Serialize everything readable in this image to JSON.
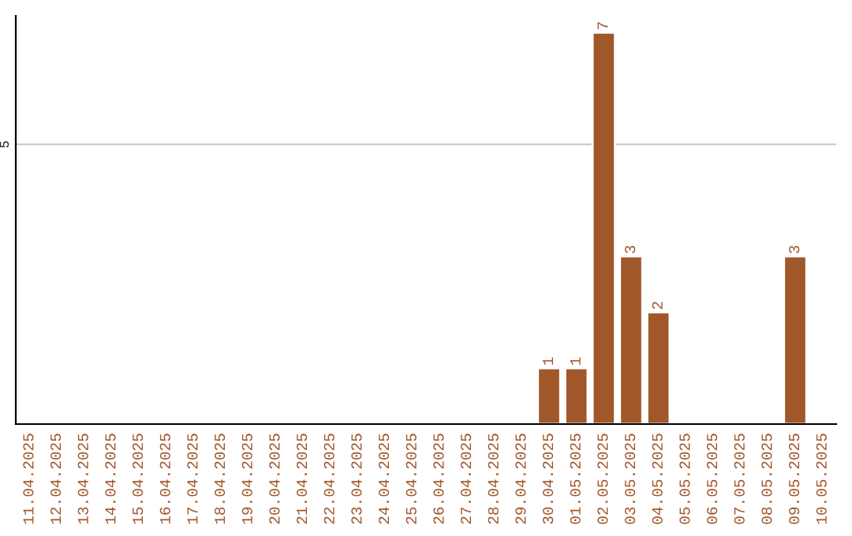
{
  "chart_data": {
    "type": "bar",
    "categories": [
      "11.04.2025",
      "12.04.2025",
      "13.04.2025",
      "14.04.2025",
      "15.04.2025",
      "16.04.2025",
      "17.04.2025",
      "18.04.2025",
      "19.04.2025",
      "20.04.2025",
      "21.04.2025",
      "22.04.2025",
      "23.04.2025",
      "24.04.2025",
      "25.04.2025",
      "26.04.2025",
      "27.04.2025",
      "28.04.2025",
      "29.04.2025",
      "30.04.2025",
      "01.05.2025",
      "02.05.2025",
      "03.05.2025",
      "04.05.2025",
      "05.05.2025",
      "06.05.2025",
      "07.05.2025",
      "08.05.2025",
      "09.05.2025",
      "10.05.2025"
    ],
    "values": [
      null,
      null,
      null,
      null,
      null,
      null,
      null,
      null,
      null,
      null,
      null,
      null,
      null,
      null,
      null,
      null,
      null,
      null,
      null,
      1,
      1,
      7,
      3,
      2,
      null,
      null,
      null,
      null,
      3,
      null
    ],
    "data_labels": true,
    "color": "#a0572a",
    "ylim": [
      0,
      7.3
    ],
    "yticks": [
      {
        "value": 0,
        "label": null
      },
      {
        "value": 5,
        "label": "5"
      }
    ],
    "grid": "y",
    "legend": false
  }
}
